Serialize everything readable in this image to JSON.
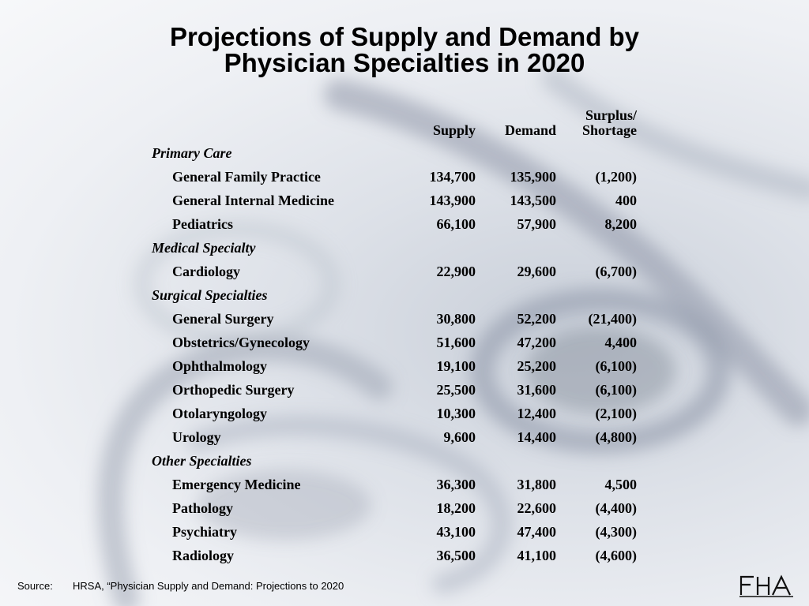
{
  "title_line1": "Projections of Supply and Demand by",
  "title_line2": "Physician  Specialties in 2020",
  "headers": {
    "supply": "Supply",
    "demand": "Demand",
    "surplus_line1": "Surplus/",
    "surplus_line2": "Shortage"
  },
  "rows": [
    {
      "type": "category",
      "label": "Primary Care"
    },
    {
      "type": "item",
      "label": "General Family Practice",
      "supply": "134,700",
      "demand": "135,900",
      "surplus": "(1,200)"
    },
    {
      "type": "item",
      "label": "General Internal Medicine",
      "supply": "143,900",
      "demand": "143,500",
      "surplus": "400"
    },
    {
      "type": "item",
      "label": "Pediatrics",
      "supply": "66,100",
      "demand": "57,900",
      "surplus": "8,200"
    },
    {
      "type": "category",
      "label": "Medical Specialty"
    },
    {
      "type": "item",
      "label": "Cardiology",
      "supply": "22,900",
      "demand": "29,600",
      "surplus": "(6,700)"
    },
    {
      "type": "category",
      "label": "Surgical Specialties"
    },
    {
      "type": "item",
      "label": "General Surgery",
      "supply": "30,800",
      "demand": "52,200",
      "surplus": "(21,400)"
    },
    {
      "type": "item",
      "label": "Obstetrics/Gynecology",
      "supply": "51,600",
      "demand": "47,200",
      "surplus": "4,400"
    },
    {
      "type": "item",
      "label": "Ophthalmology",
      "supply": "19,100",
      "demand": "25,200",
      "surplus": "(6,100)"
    },
    {
      "type": "item",
      "label": "Orthopedic Surgery",
      "supply": "25,500",
      "demand": "31,600",
      "surplus": "(6,100)"
    },
    {
      "type": "item",
      "label": "Otolaryngology",
      "supply": "10,300",
      "demand": "12,400",
      "surplus": "(2,100)"
    },
    {
      "type": "item",
      "label": "Urology",
      "supply": "9,600",
      "demand": "14,400",
      "surplus": "(4,800)"
    },
    {
      "type": "category",
      "label": "Other Specialties"
    },
    {
      "type": "item",
      "label": "Emergency Medicine",
      "supply": "36,300",
      "demand": "31,800",
      "surplus": "4,500"
    },
    {
      "type": "item",
      "label": "Pathology",
      "supply": "18,200",
      "demand": "22,600",
      "surplus": "(4,400)"
    },
    {
      "type": "item",
      "label": "Psychiatry",
      "supply": "43,100",
      "demand": "47,400",
      "surplus": "(4,300)"
    },
    {
      "type": "item",
      "label": "Radiology",
      "supply": "36,500",
      "demand": "41,100",
      "surplus": "(4,600)"
    }
  ],
  "source_label": "Source:",
  "source_text": "HRSA, “Physician Supply and Demand:  Projections to 2020",
  "logo": "FHA",
  "colors": {
    "background": "#e8ebf0",
    "text": "#000000"
  }
}
